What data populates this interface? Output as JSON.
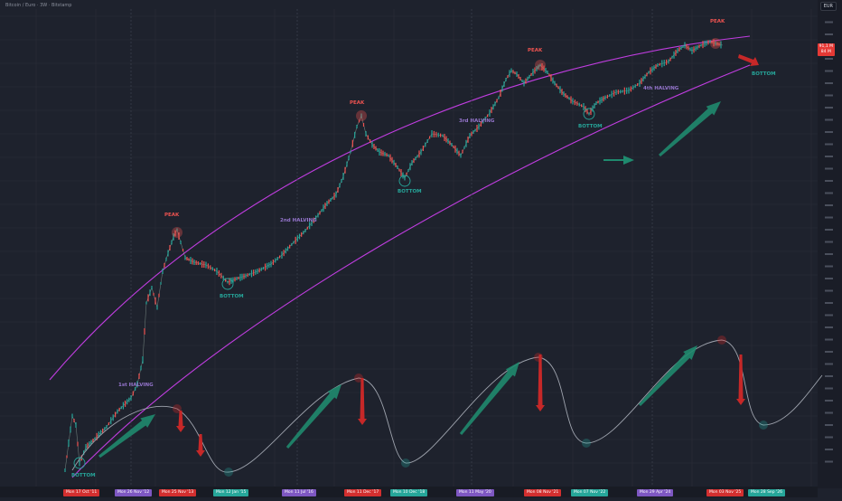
{
  "header": {
    "title": "Bitcoin / Euro · 3W · Bitstamp",
    "currency": "EUR",
    "last_price": "91,1 M",
    "last_change": "84 M"
  },
  "chart_data": {
    "type": "line",
    "log_scale": true,
    "grid": true,
    "x_axis_labels": [
      {
        "text": "Mon 17 Oct '11",
        "color": "#d32f2f"
      },
      {
        "text": "Mon 26 Nov '12",
        "color": "#7e57c2"
      },
      {
        "text": "Mon 25 Nov '13",
        "color": "#d32f2f"
      },
      {
        "text": "Mon 12 Jan '15",
        "color": "#26a69a"
      },
      {
        "text": "Mon 11 Jul '16",
        "color": "#7e57c2"
      },
      {
        "text": "Mon 11 Dec '17",
        "color": "#d32f2f"
      },
      {
        "text": "Mon 10 Dec '18",
        "color": "#26a69a"
      },
      {
        "text": "Mon 11 May '20",
        "color": "#7e57c2"
      },
      {
        "text": "Mon 08 Nov '21",
        "color": "#d32f2f"
      },
      {
        "text": "Mon 07 Nov '22",
        "color": "#26a69a"
      },
      {
        "text": "Mon 29 Apr '24",
        "color": "#7e57c2"
      },
      {
        "text": "Mon 03 Nov '25",
        "color": "#d32f2f"
      },
      {
        "text": "Mon 28 Sep '26",
        "color": "#26a69a"
      }
    ],
    "events": [
      {
        "label": "BOTTOM",
        "kind": "bottom",
        "date": "2011-10"
      },
      {
        "label": "1st HALVING",
        "kind": "halving",
        "date": "2012-11"
      },
      {
        "label": "PEAK",
        "kind": "peak",
        "date": "2013-11"
      },
      {
        "label": "BOTTOM",
        "kind": "bottom",
        "date": "2015-01"
      },
      {
        "label": "2nd HALVING",
        "kind": "halving",
        "date": "2016-07"
      },
      {
        "label": "PEAK",
        "kind": "peak",
        "date": "2017-12"
      },
      {
        "label": "BOTTOM",
        "kind": "bottom",
        "date": "2018-12"
      },
      {
        "label": "3rd HALVING",
        "kind": "halving",
        "date": "2020-05"
      },
      {
        "label": "PEAK",
        "kind": "peak",
        "date": "2021-11"
      },
      {
        "label": "BOTTOM",
        "kind": "bottom",
        "date": "2022-11"
      },
      {
        "label": "4th HALVING",
        "kind": "halving",
        "date": "2024-04"
      },
      {
        "label": "PEAK",
        "kind": "peak",
        "date": "2025-11"
      },
      {
        "label": "BOTTOM",
        "kind": "bottom",
        "date": "2026-09"
      }
    ],
    "colors": {
      "up": "#26a69a",
      "down": "#ef5350",
      "channel": "#c03de0",
      "cycle_curve": "#9ea3ad",
      "arrow_up": "#1f8a6e",
      "arrow_down": "#c62828"
    }
  }
}
